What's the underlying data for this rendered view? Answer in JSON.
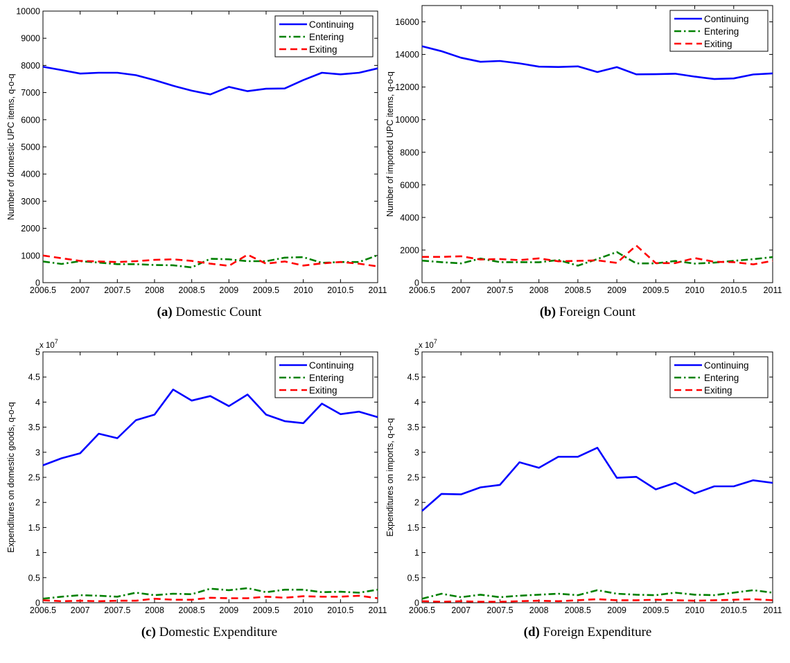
{
  "chart_data": [
    {
      "type": "line",
      "caption_label": "(a)",
      "caption_text": "Domestic Count",
      "ylabel": "Number of domestic UPC items, q-o-q",
      "xlim": [
        2006.5,
        2011
      ],
      "ylim": [
        0,
        10000
      ],
      "xticks": [
        "2006.5",
        "2007",
        "2007.5",
        "2008",
        "2008.5",
        "2009",
        "2009.5",
        "2010",
        "2010.5",
        "2011"
      ],
      "yticks": [
        "0",
        "1000",
        "2000",
        "3000",
        "4000",
        "5000",
        "6000",
        "7000",
        "8000",
        "9000",
        "10000"
      ],
      "exponent_label": "",
      "legend_position": "top-right",
      "x": [
        2006.5,
        2006.75,
        2007,
        2007.25,
        2007.5,
        2007.75,
        2008,
        2008.25,
        2008.5,
        2008.75,
        2009,
        2009.25,
        2009.5,
        2009.75,
        2010,
        2010.25,
        2010.5,
        2010.75,
        2011
      ],
      "series": [
        {
          "name": "Continuing",
          "color": "#0000ff",
          "dash": "solid",
          "values": [
            7950,
            7830,
            7700,
            7730,
            7730,
            7640,
            7460,
            7250,
            7070,
            6930,
            7210,
            7050,
            7140,
            7150,
            7460,
            7730,
            7670,
            7730,
            7890
          ]
        },
        {
          "name": "Entering",
          "color": "#008000",
          "dash": "dashdot",
          "values": [
            780,
            690,
            790,
            740,
            680,
            680,
            650,
            640,
            560,
            880,
            860,
            790,
            790,
            920,
            940,
            730,
            760,
            760,
            1010
          ]
        },
        {
          "name": "Exiting",
          "color": "#ff0000",
          "dash": "dashed",
          "values": [
            1000,
            900,
            800,
            780,
            760,
            790,
            840,
            860,
            800,
            700,
            620,
            1030,
            700,
            780,
            630,
            710,
            760,
            700,
            600
          ]
        }
      ]
    },
    {
      "type": "line",
      "caption_label": "(b)",
      "caption_text": "Foreign Count",
      "ylabel": "Number of imported UPC items, q-o-q",
      "xlim": [
        2006.5,
        2011
      ],
      "ylim": [
        0,
        17000
      ],
      "xticks": [
        "2006.5",
        "2007",
        "2007.5",
        "2008",
        "2008.5",
        "2009",
        "2009.5",
        "2010",
        "2010.5",
        "2011"
      ],
      "yticks": [
        "0",
        "2000",
        "4000",
        "6000",
        "8000",
        "10000",
        "12000",
        "14000",
        "16000"
      ],
      "exponent_label": "",
      "legend_position": "top-right",
      "x": [
        2006.5,
        2006.75,
        2007,
        2007.25,
        2007.5,
        2007.75,
        2008,
        2008.25,
        2008.5,
        2008.75,
        2009,
        2009.25,
        2009.5,
        2009.75,
        2010,
        2010.25,
        2010.5,
        2010.75,
        2011
      ],
      "series": [
        {
          "name": "Continuing",
          "color": "#0000ff",
          "dash": "solid",
          "values": [
            14500,
            14200,
            13800,
            13550,
            13600,
            13450,
            13250,
            13230,
            13270,
            12920,
            13220,
            12780,
            12790,
            12820,
            12640,
            12490,
            12530,
            12770,
            12840
          ]
        },
        {
          "name": "Entering",
          "color": "#008000",
          "dash": "dashdot",
          "values": [
            1350,
            1260,
            1180,
            1480,
            1260,
            1260,
            1250,
            1390,
            1040,
            1450,
            1880,
            1180,
            1180,
            1330,
            1170,
            1230,
            1340,
            1440,
            1570
          ]
        },
        {
          "name": "Exiting",
          "color": "#ff0000",
          "dash": "dashed",
          "values": [
            1580,
            1580,
            1620,
            1420,
            1450,
            1380,
            1490,
            1310,
            1340,
            1370,
            1210,
            2280,
            1200,
            1200,
            1510,
            1280,
            1260,
            1120,
            1340
          ]
        }
      ]
    },
    {
      "type": "line",
      "caption_label": "(c)",
      "caption_text": "Domestic Expenditure",
      "ylabel": "Expenditures on domestic goods, q-o-q",
      "xlim": [
        2006.5,
        2011
      ],
      "ylim": [
        0,
        5
      ],
      "xticks": [
        "2006.5",
        "2007",
        "2007.5",
        "2008",
        "2008.5",
        "2009",
        "2009.5",
        "2010",
        "2010.5",
        "2011"
      ],
      "yticks": [
        "0",
        "0.5",
        "1",
        "1.5",
        "2",
        "2.5",
        "3",
        "3.5",
        "4",
        "4.5",
        "5"
      ],
      "exponent_label": "x 10",
      "exponent_power": "7",
      "legend_position": "top-right",
      "x": [
        2006.5,
        2006.75,
        2007,
        2007.25,
        2007.5,
        2007.75,
        2008,
        2008.25,
        2008.5,
        2008.75,
        2009,
        2009.25,
        2009.5,
        2009.75,
        2010,
        2010.25,
        2010.5,
        2010.75,
        2011
      ],
      "series": [
        {
          "name": "Continuing",
          "color": "#0000ff",
          "dash": "solid",
          "values": [
            2.74,
            2.88,
            2.98,
            3.37,
            3.28,
            3.64,
            3.75,
            4.25,
            4.03,
            4.12,
            3.92,
            4.15,
            3.75,
            3.62,
            3.58,
            3.97,
            3.76,
            3.81,
            3.7
          ]
        },
        {
          "name": "Entering",
          "color": "#008000",
          "dash": "dashdot",
          "values": [
            0.08,
            0.12,
            0.15,
            0.14,
            0.12,
            0.2,
            0.15,
            0.18,
            0.17,
            0.28,
            0.25,
            0.29,
            0.21,
            0.26,
            0.26,
            0.21,
            0.22,
            0.2,
            0.26
          ]
        },
        {
          "name": "Exiting",
          "color": "#ff0000",
          "dash": "dashed",
          "values": [
            0.05,
            0.03,
            0.04,
            0.03,
            0.04,
            0.04,
            0.08,
            0.06,
            0.06,
            0.1,
            0.09,
            0.09,
            0.12,
            0.1,
            0.13,
            0.12,
            0.12,
            0.14,
            0.09
          ]
        }
      ]
    },
    {
      "type": "line",
      "caption_label": "(d)",
      "caption_text": "Foreign Expenditure",
      "ylabel": "Expenditures on imports, q-o-q",
      "xlim": [
        2006.5,
        2011
      ],
      "ylim": [
        0,
        5
      ],
      "xticks": [
        "2006.5",
        "2007",
        "2007.5",
        "2008",
        "2008.5",
        "2009",
        "2009.5",
        "2010",
        "2010.5",
        "2011"
      ],
      "yticks": [
        "0",
        "0.5",
        "1",
        "1.5",
        "2",
        "2.5",
        "3",
        "3.5",
        "4",
        "4.5",
        "5"
      ],
      "exponent_label": "x 10",
      "exponent_power": "7",
      "legend_position": "top-right",
      "x": [
        2006.5,
        2006.75,
        2007,
        2007.25,
        2007.5,
        2007.75,
        2008,
        2008.25,
        2008.5,
        2008.75,
        2009,
        2009.25,
        2009.5,
        2009.75,
        2010,
        2010.25,
        2010.5,
        2010.75,
        2011
      ],
      "series": [
        {
          "name": "Continuing",
          "color": "#0000ff",
          "dash": "solid",
          "values": [
            1.83,
            2.17,
            2.16,
            2.3,
            2.35,
            2.8,
            2.69,
            2.91,
            2.91,
            3.09,
            2.49,
            2.51,
            2.26,
            2.39,
            2.18,
            2.32,
            2.32,
            2.44,
            2.39
          ]
        },
        {
          "name": "Entering",
          "color": "#008000",
          "dash": "dashdot",
          "values": [
            0.08,
            0.18,
            0.11,
            0.16,
            0.11,
            0.14,
            0.16,
            0.18,
            0.15,
            0.25,
            0.18,
            0.16,
            0.15,
            0.2,
            0.16,
            0.15,
            0.2,
            0.25,
            0.2
          ]
        },
        {
          "name": "Exiting",
          "color": "#ff0000",
          "dash": "dashed",
          "values": [
            0.03,
            0.02,
            0.03,
            0.02,
            0.02,
            0.03,
            0.04,
            0.03,
            0.05,
            0.07,
            0.05,
            0.05,
            0.06,
            0.05,
            0.04,
            0.05,
            0.06,
            0.07,
            0.05
          ]
        }
      ]
    }
  ]
}
